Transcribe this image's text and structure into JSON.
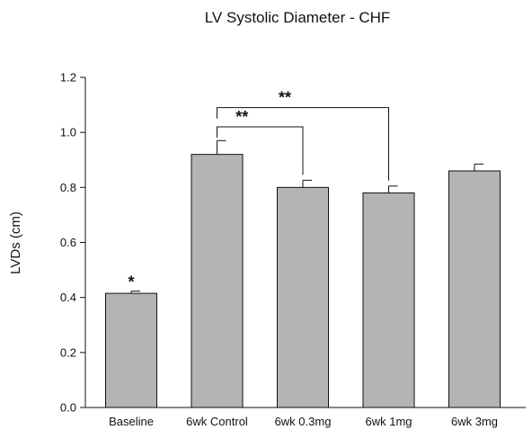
{
  "chart_data": {
    "type": "bar",
    "title": "LV Systolic Diameter - CHF",
    "xlabel": "",
    "ylabel": "LVDs (cm)",
    "ylim": [
      0,
      1.2
    ],
    "yticks": [
      "0.0",
      "0.2",
      "0.4",
      "0.6",
      "0.8",
      "1.0",
      "1.2"
    ],
    "grid": false,
    "legend": "none",
    "categories": [
      "Baseline",
      "6wk Control",
      "6wk 0.3mg",
      "6wk 1mg",
      "6wk 3mg"
    ],
    "values": [
      0.415,
      0.92,
      0.8,
      0.78,
      0.86
    ],
    "error": [
      0.008,
      0.05,
      0.026,
      0.025,
      0.025
    ],
    "bar_color": "#b4b4b4",
    "point_labels": [
      {
        "category": "Baseline",
        "text": "*"
      }
    ],
    "brackets": [
      {
        "from": "6wk Control",
        "to": "6wk 0.3mg",
        "y": 1.02,
        "text": "**"
      },
      {
        "from": "6wk Control",
        "to": "6wk 1mg",
        "y": 1.09,
        "text": "**"
      }
    ]
  }
}
